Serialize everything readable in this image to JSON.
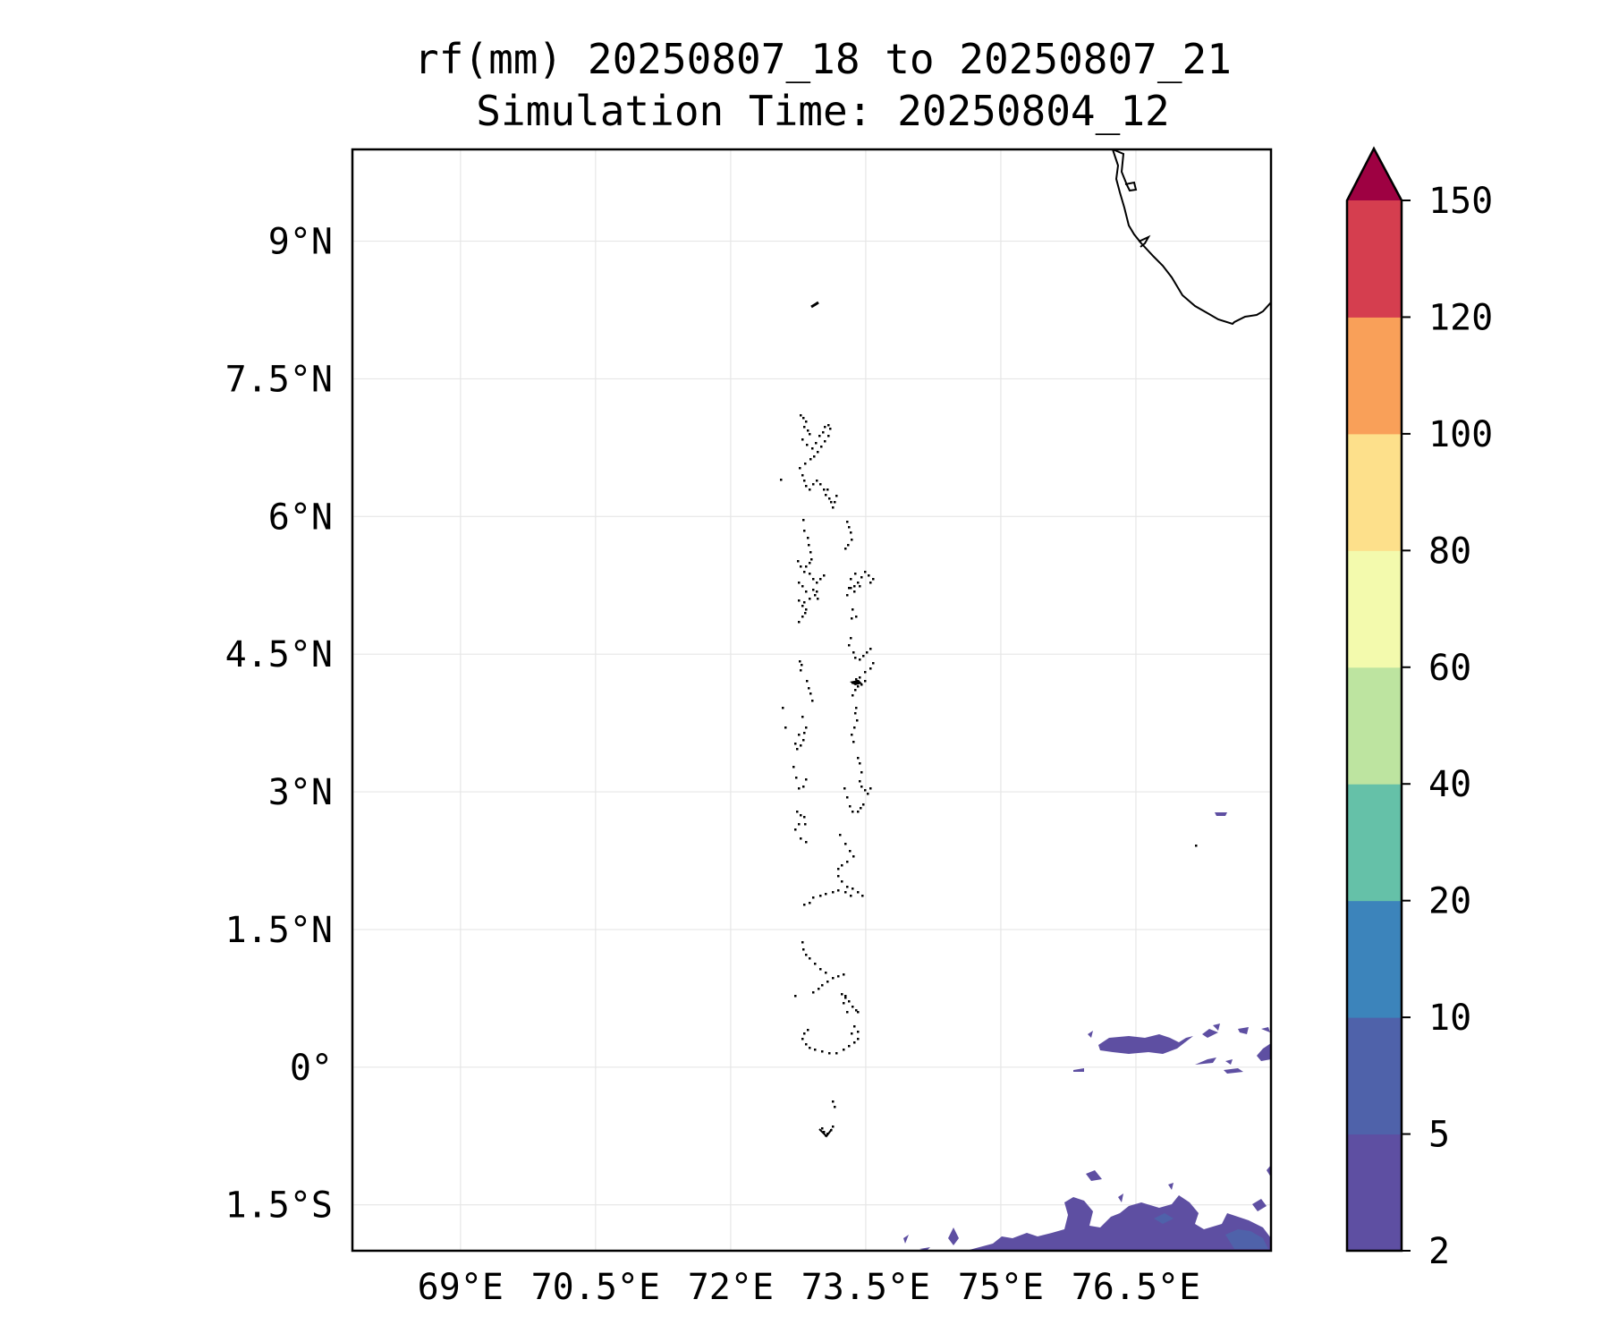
{
  "title": "rf(mm) 20250807_18 to 20250807_21",
  "subtitle": "Simulation Time: 20250804_12",
  "map": {
    "lon_range": [
      67.8,
      78.0
    ],
    "lat_range": [
      -2.0,
      10.0
    ],
    "gridlines": true,
    "lon_ticks": [
      69,
      70.5,
      72,
      73.5,
      75,
      76.5
    ],
    "lon_tick_labels": [
      "69°E",
      "70.5°E",
      "72°E",
      "73.5°E",
      "75°E",
      "76.5°E"
    ],
    "lat_ticks": [
      9,
      7.5,
      6,
      4.5,
      3,
      1.5,
      0,
      -1.5
    ],
    "lat_tick_labels": [
      "9°N",
      "7.5°N",
      "6°N",
      "4.5°N",
      "3°N",
      "1.5°N",
      "0°",
      "1.5°S"
    ],
    "coastline_color": "#000000",
    "features": [
      "India southern tip coastline",
      "Lakshadweep island",
      "Maldives atolls",
      "Rainfall patches near equator east",
      "Rainfall patches south-east"
    ]
  },
  "colorbar": {
    "levels": [
      2,
      5,
      10,
      20,
      40,
      60,
      80,
      100,
      120,
      150
    ],
    "tick_labels": [
      "2",
      "5",
      "10",
      "20",
      "40",
      "60",
      "80",
      "100",
      "120",
      "150"
    ],
    "colors": [
      "#5e4fa2",
      "#4f62aa",
      "#3c84bb",
      "#65c1a8",
      "#bde4a0",
      "#f3faad",
      "#fde08b",
      "#f9a059",
      "#d53e4f"
    ],
    "extend_color": "#9e0142",
    "extend": "max"
  }
}
